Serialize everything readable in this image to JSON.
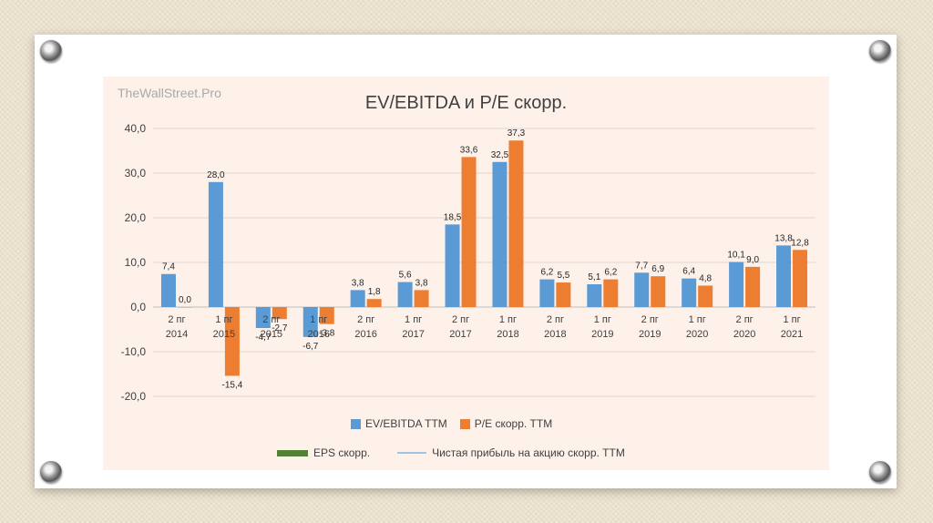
{
  "watermark": "TheWallStreet.Pro",
  "chart_data": {
    "type": "bar",
    "title": "EV/EBITDA и P/E скорр.",
    "categories": [
      [
        "2 пг",
        "2014"
      ],
      [
        "1 пг",
        "2015"
      ],
      [
        "2 пг",
        "2015"
      ],
      [
        "1 пг",
        "2016"
      ],
      [
        "2 пг",
        "2016"
      ],
      [
        "1 пг",
        "2017"
      ],
      [
        "2 пг",
        "2017"
      ],
      [
        "1 пг",
        "2018"
      ],
      [
        "2 пг",
        "2018"
      ],
      [
        "1 пг",
        "2019"
      ],
      [
        "2 пг",
        "2019"
      ],
      [
        "1 пг",
        "2020"
      ],
      [
        "2 пг",
        "2020"
      ],
      [
        "1 пг",
        "2021"
      ]
    ],
    "series": [
      {
        "name": "EV/EBITDA TTM",
        "color": "#5b9bd5",
        "values": [
          7.4,
          28.0,
          -4.7,
          -6.7,
          3.8,
          5.6,
          18.5,
          32.5,
          6.2,
          5.1,
          7.7,
          6.4,
          10.1,
          13.8
        ],
        "labels": [
          "7,4",
          "28,0",
          "-4,7",
          "-6,7",
          "3,8",
          "5,6",
          "18,5",
          "32,5",
          "6,2",
          "5,1",
          "7,7",
          "6,4",
          "10,1",
          "13,8"
        ]
      },
      {
        "name": "P/E скорр. TTM",
        "color": "#ed7d31",
        "values": [
          0.0,
          -15.4,
          -2.7,
          -3.8,
          1.8,
          3.8,
          33.6,
          37.3,
          5.5,
          6.2,
          6.9,
          4.8,
          9.0,
          12.8
        ],
        "labels": [
          "0,0",
          "-15,4",
          "-2,7",
          "-3,8",
          "1,8",
          "3,8",
          "33,6",
          "37,3",
          "5,5",
          "6,2",
          "6,9",
          "4,8",
          "9,0",
          "12,8"
        ]
      }
    ],
    "ylim": [
      -20,
      40
    ],
    "yticks": [
      -20,
      -10,
      0,
      10,
      20,
      30,
      40
    ],
    "ytick_labels": [
      "-20,0",
      "-10,0",
      "0,0",
      "10,0",
      "20,0",
      "30,0",
      "40,0"
    ],
    "grid": true,
    "legend_position": "bottom",
    "extra_legend": [
      {
        "name": "EPS скорр.",
        "color": "#548235",
        "kind": "bar"
      },
      {
        "name": "Чистая прибыль  на акцию скорр. TTM",
        "color": "#9dc3e6",
        "kind": "line"
      }
    ]
  }
}
